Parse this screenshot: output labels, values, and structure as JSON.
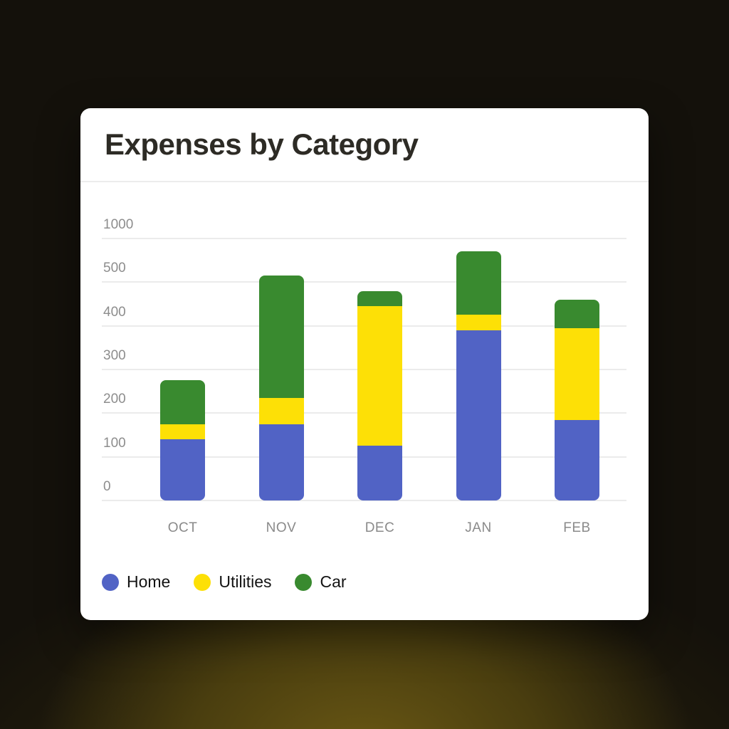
{
  "chart_data": {
    "type": "bar",
    "stacked": true,
    "title": "Expenses by Category",
    "categories": [
      "OCT",
      "NOV",
      "DEC",
      "JAN",
      "FEB"
    ],
    "series": [
      {
        "name": "Home",
        "color": "#5163c5",
        "values": [
          140,
          175,
          125,
          390,
          185
        ]
      },
      {
        "name": "Utilities",
        "color": "#fde006",
        "values": [
          35,
          60,
          320,
          35,
          210
        ]
      },
      {
        "name": "Car",
        "color": "#398a2f",
        "values": [
          100,
          345,
          35,
          430,
          65
        ]
      }
    ],
    "y_ticks": [
      0,
      100,
      200,
      300,
      400,
      500,
      1000
    ],
    "xlabel": "",
    "ylabel": "",
    "grid": true,
    "legend_position": "bottom"
  },
  "colors": {
    "card_background": "#ffffff",
    "page_background": "#14110b",
    "page_glow": "#6a5814",
    "grid_line": "#ebebeb",
    "axis_text": "#8d8d8d",
    "title_text": "#2d2b25",
    "legend_text": "#131313"
  }
}
